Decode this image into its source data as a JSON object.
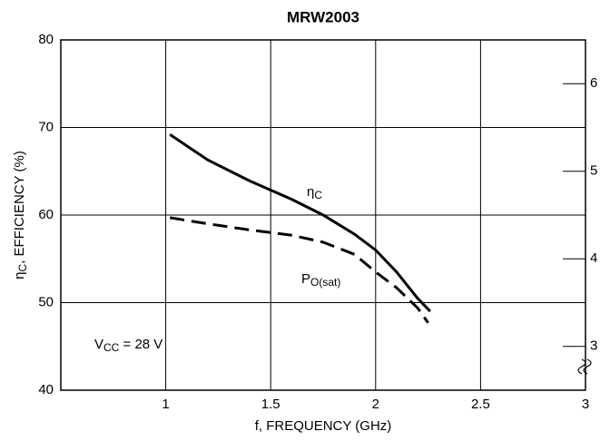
{
  "chart_data": {
    "type": "line",
    "title": "MRW2003",
    "x_label": "f, FREQUENCY (GHz)",
    "y_label": [
      "η",
      "C",
      ", EFFICIENCY (%)"
    ],
    "xlim": [
      0.5,
      3
    ],
    "xticks": [
      1,
      1.5,
      2,
      2.5,
      3
    ],
    "ylim": [
      40,
      80
    ],
    "yticks": [
      40,
      50,
      60,
      70,
      80
    ],
    "y2lim": [
      2.5,
      6.5
    ],
    "y2ticks": [
      3,
      4,
      5,
      6
    ],
    "grid": true,
    "annotations": [
      [
        "V",
        "CC",
        " = 28 V"
      ]
    ],
    "series": [
      {
        "label": [
          "η",
          "C"
        ],
        "color": "#000000",
        "dash": false,
        "x": [
          1.02,
          1.2,
          1.4,
          1.6,
          1.75,
          1.9,
          2.0,
          2.1,
          2.2,
          2.26
        ],
        "values": [
          69.2,
          66.3,
          63.9,
          61.8,
          60.0,
          57.8,
          56.0,
          53.5,
          50.5,
          49.0
        ]
      },
      {
        "label": [
          "P",
          "O(sat)"
        ],
        "color": "#000000",
        "dash": true,
        "axis": "y2",
        "x": [
          1.02,
          1.2,
          1.4,
          1.6,
          1.75,
          1.9,
          2.0,
          2.1,
          2.2,
          2.25
        ],
        "values": [
          4.47,
          4.4,
          4.33,
          4.27,
          4.19,
          4.05,
          3.85,
          3.67,
          3.44,
          3.27
        ]
      }
    ]
  }
}
